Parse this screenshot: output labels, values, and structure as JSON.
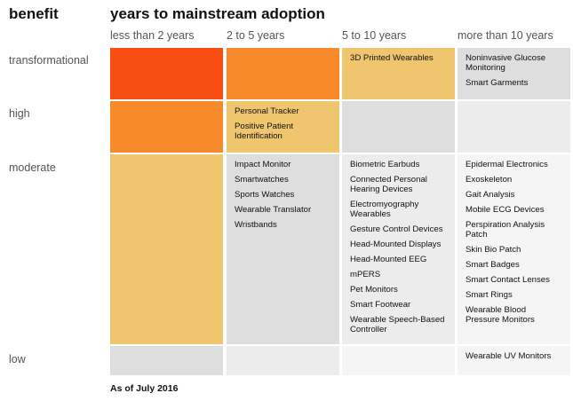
{
  "header": {
    "benefit_label": "benefit",
    "years_label": "years to mainstream adoption"
  },
  "columns": [
    {
      "label": "less than 2 years"
    },
    {
      "label": "2 to 5 years"
    },
    {
      "label": "5 to 10 years"
    },
    {
      "label": "more than 10 years"
    }
  ],
  "rows": [
    {
      "label": "transformational"
    },
    {
      "label": "high"
    },
    {
      "label": "moderate"
    },
    {
      "label": "low"
    }
  ],
  "colors": {
    "red_orange": "#f94e12",
    "orange": "#f98a2b",
    "yellow": "#efc56e",
    "gray_dark": "#dedede",
    "gray_mid": "#ececec",
    "gray_light": "#f5f5f5"
  },
  "cells": {
    "transformational": {
      "less_than_2": {
        "color": "red_orange",
        "items": []
      },
      "2_to_5": {
        "color": "orange",
        "items": []
      },
      "5_to_10": {
        "color": "yellow",
        "items": [
          "3D Printed Wearables"
        ]
      },
      "more_than_10": {
        "color": "gray_dark",
        "items": [
          "Noninvasive Glucose Monitoring",
          "Smart Garments"
        ]
      }
    },
    "high": {
      "less_than_2": {
        "color": "orange",
        "items": []
      },
      "2_to_5": {
        "color": "yellow",
        "items": [
          "Personal Tracker",
          "Positive Patient Identification"
        ]
      },
      "5_to_10": {
        "color": "gray_dark",
        "items": []
      },
      "more_than_10": {
        "color": "gray_mid",
        "items": []
      }
    },
    "moderate": {
      "less_than_2": {
        "color": "yellow",
        "items": []
      },
      "2_to_5": {
        "color": "gray_dark",
        "items": [
          "Impact Monitor",
          "Smartwatches",
          "Sports Watches",
          "Wearable Translator",
          "Wristbands"
        ]
      },
      "5_to_10": {
        "color": "gray_mid",
        "items": [
          "Biometric Earbuds",
          "Connected Personal Hearing Devices",
          "Electromyography Wearables",
          "Gesture Control Devices",
          "Head-Mounted Displays",
          "Head-Mounted EEG",
          "mPERS",
          "Pet Monitors",
          "Smart Footwear",
          "Wearable Speech-Based Controller"
        ]
      },
      "more_than_10": {
        "color": "gray_light",
        "items": [
          "Epidermal Electronics",
          "Exoskeleton",
          "Gait Analysis",
          "Mobile ECG Devices",
          "Perspiration Analysis Patch",
          "Skin Bio Patch",
          "Smart Badges",
          "Smart Contact Lenses",
          "Smart Rings",
          "Wearable Blood Pressure Monitors"
        ]
      }
    },
    "low": {
      "less_than_2": {
        "color": "gray_dark",
        "items": []
      },
      "2_to_5": {
        "color": "gray_mid",
        "items": []
      },
      "5_to_10": {
        "color": "gray_light",
        "items": []
      },
      "more_than_10": {
        "color": "gray_light",
        "items": [
          "Wearable UV Monitors"
        ]
      }
    }
  },
  "footnote": "As of July 2016"
}
